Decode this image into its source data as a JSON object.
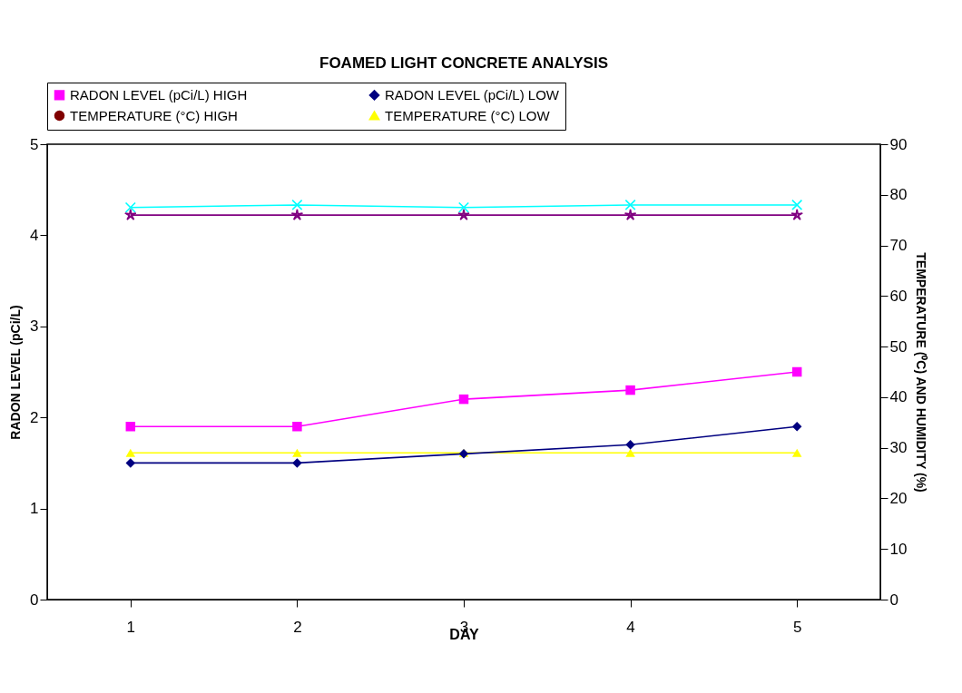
{
  "chart_data": {
    "type": "line",
    "title": "FOAMED LIGHT CONCRETE  ANALYSIS",
    "xlabel": "DAY",
    "ylabel": "RADON LEVEL (pCi/L)",
    "y2label": "TEMPERATURE (⁰C) AND HUMIDITY (%)",
    "categories": [
      "1",
      "2",
      "3",
      "4",
      "5"
    ],
    "ylim": [
      0,
      5
    ],
    "yticks": [
      0,
      1,
      2,
      3,
      4,
      5
    ],
    "y2lim": [
      0,
      90
    ],
    "y2ticks": [
      0,
      10,
      20,
      30,
      40,
      50,
      60,
      70,
      80,
      90
    ],
    "legend": "top",
    "grid": false,
    "series": [
      {
        "name": "RADON LEVEL (pCi/L) HIGH",
        "color": "#ff00ff",
        "marker": "square",
        "values": [
          1.9,
          1.9,
          2.2,
          2.3,
          2.5
        ]
      },
      {
        "name": "RADON LEVEL (pCi/L) LOW",
        "color": "#000080",
        "marker": "diamond",
        "values": [
          1.5,
          1.5,
          1.6,
          1.7,
          1.9
        ]
      },
      {
        "name": "TEMPERATURE (°C) HIGH",
        "color": "#800000",
        "marker": "circle",
        "axis": "y2",
        "values": [
          null,
          null,
          null,
          null,
          null
        ]
      },
      {
        "name": "TEMPERATURE (°C) LOW",
        "color": "#ffff00",
        "marker": "triangle",
        "axis": "y2",
        "values": [
          29,
          29,
          29,
          29,
          29
        ]
      },
      {
        "color": "#00ffff",
        "marker": "cross",
        "axis": "y2",
        "values": [
          77.5,
          78,
          77.5,
          78,
          78
        ]
      },
      {
        "color": "#800080",
        "marker": "star",
        "axis": "y2",
        "values": [
          76,
          76,
          76,
          76,
          76
        ]
      }
    ]
  }
}
